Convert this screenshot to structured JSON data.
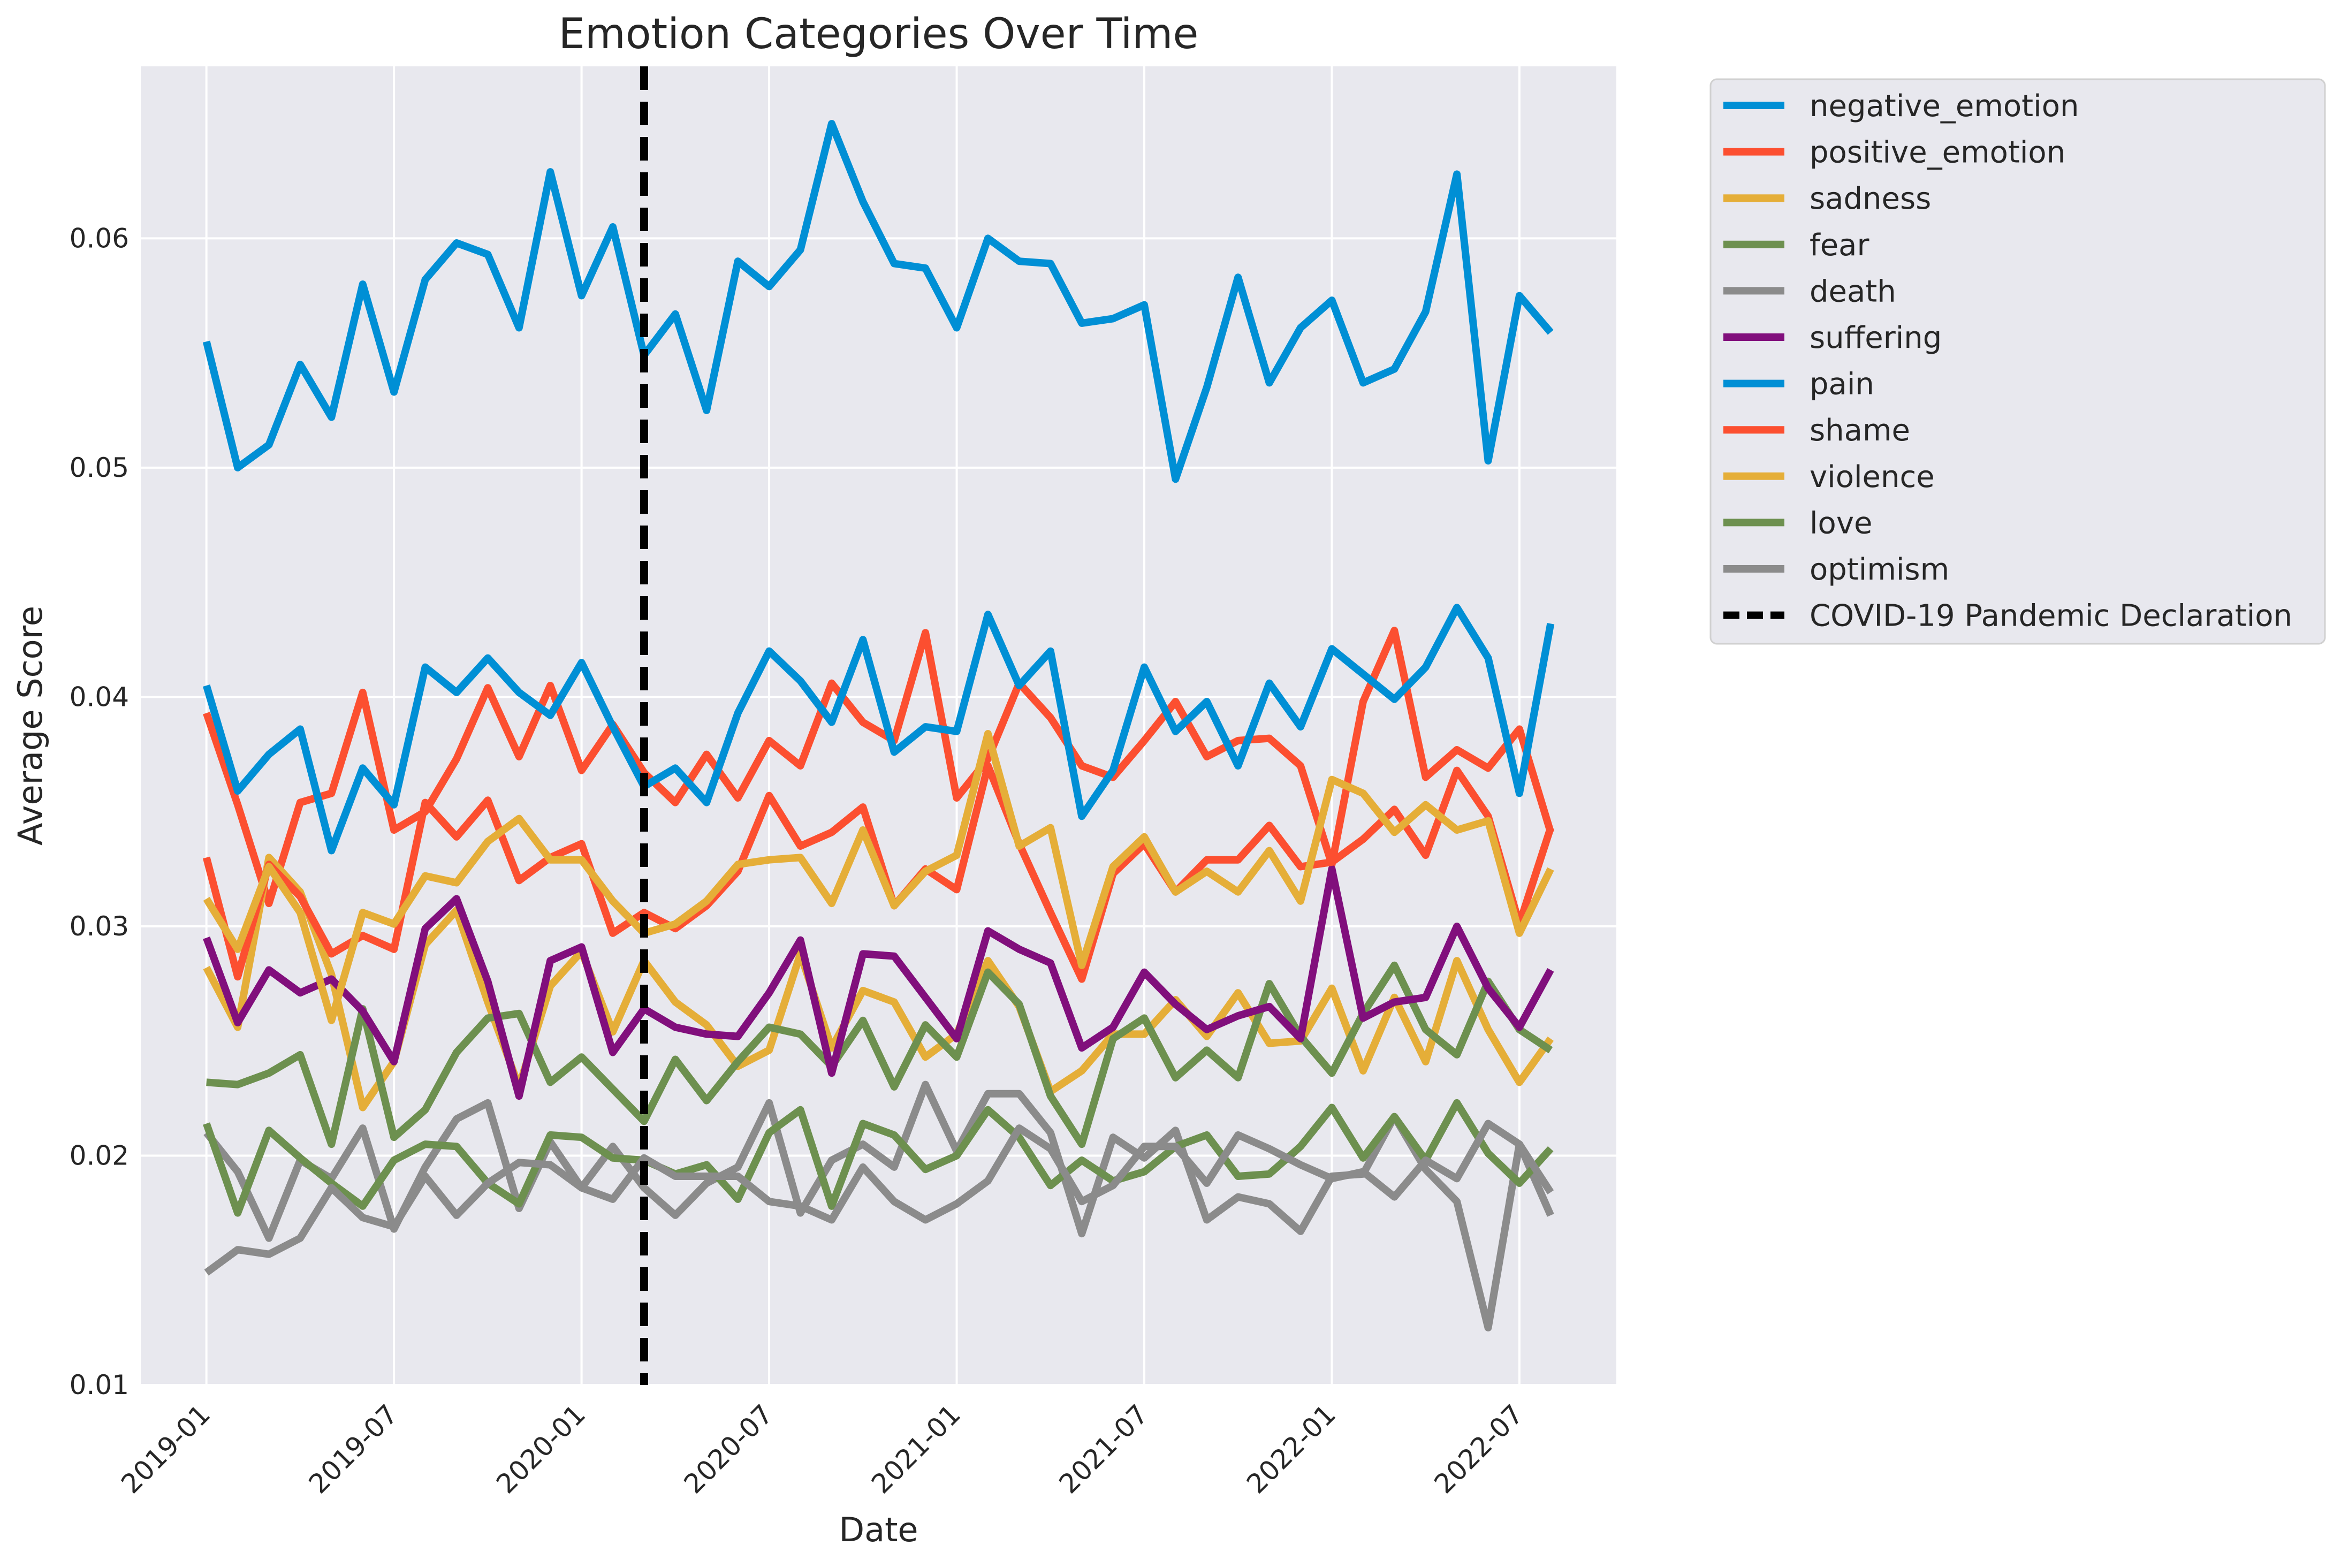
{
  "chart_data": {
    "type": "line",
    "title": "Emotion Categories Over Time",
    "xlabel": "Date",
    "ylabel": "Average Score",
    "x": [
      "2019-01",
      "2019-02",
      "2019-03",
      "2019-04",
      "2019-05",
      "2019-06",
      "2019-07",
      "2019-08",
      "2019-09",
      "2019-10",
      "2019-11",
      "2019-12",
      "2020-01",
      "2020-02",
      "2020-03",
      "2020-04",
      "2020-05",
      "2020-06",
      "2020-07",
      "2020-08",
      "2020-09",
      "2020-10",
      "2020-11",
      "2020-12",
      "2021-01",
      "2021-02",
      "2021-03",
      "2021-04",
      "2021-05",
      "2021-06",
      "2021-07",
      "2021-08",
      "2021-09",
      "2021-10",
      "2021-11",
      "2021-12",
      "2022-01",
      "2022-02",
      "2022-03",
      "2022-04",
      "2022-05",
      "2022-06",
      "2022-07",
      "2022-08"
    ],
    "x_ticks": [
      "2019-01",
      "2019-07",
      "2020-01",
      "2020-07",
      "2021-01",
      "2021-07",
      "2022-01",
      "2022-07"
    ],
    "ylim": [
      0.01,
      0.0675
    ],
    "y_ticks": [
      0.01,
      0.02,
      0.03,
      0.04,
      0.05,
      0.06
    ],
    "y_tick_labels": [
      "0.01",
      "0.02",
      "0.03",
      "0.04",
      "0.05",
      "0.06"
    ],
    "grid": true,
    "legend_position": "outside-top-right",
    "series": [
      {
        "name": "negative_emotion",
        "color": "#008fd5",
        "values": [
          0.0555,
          0.05,
          0.051,
          0.0545,
          0.0522,
          0.058,
          0.0533,
          0.0582,
          0.0598,
          0.0593,
          0.0561,
          0.0629,
          0.0575,
          0.0605,
          0.0549,
          0.0567,
          0.0525,
          0.059,
          0.0579,
          0.0595,
          0.065,
          0.0616,
          0.0589,
          0.0587,
          0.0561,
          0.06,
          0.059,
          0.0589,
          0.0563,
          0.0565,
          0.0571,
          0.0495,
          0.0535,
          0.0583,
          0.0537,
          0.0561,
          0.0573,
          0.0537,
          0.0543,
          0.0568,
          0.0628,
          0.0503,
          0.0575,
          0.0559
        ]
      },
      {
        "name": "positive_emotion",
        "color": "#fc4f30",
        "values": [
          0.0393,
          0.0353,
          0.031,
          0.0354,
          0.0358,
          0.0402,
          0.0342,
          0.035,
          0.0373,
          0.0404,
          0.0374,
          0.0405,
          0.0368,
          0.0388,
          0.0367,
          0.0354,
          0.0375,
          0.0356,
          0.0381,
          0.037,
          0.0406,
          0.0389,
          0.0381,
          0.0428,
          0.0356,
          0.0373,
          0.0406,
          0.0391,
          0.037,
          0.0365,
          0.0381,
          0.0398,
          0.0374,
          0.0381,
          0.0382,
          0.037,
          0.0327,
          0.0398,
          0.0429,
          0.0365,
          0.0377,
          0.0369,
          0.0386,
          0.0341
        ]
      },
      {
        "name": "sadness",
        "color": "#e5ae38",
        "values": [
          0.0282,
          0.0256,
          0.033,
          0.0315,
          0.0279,
          0.0221,
          0.0241,
          0.0292,
          0.0307,
          0.0267,
          0.023,
          0.0274,
          0.0289,
          0.0254,
          0.0285,
          0.0267,
          0.0257,
          0.0239,
          0.0246,
          0.0288,
          0.0247,
          0.0272,
          0.0267,
          0.0243,
          0.0253,
          0.0285,
          0.0265,
          0.0228,
          0.0237,
          0.0253,
          0.0253,
          0.0268,
          0.0252,
          0.0271,
          0.0249,
          0.025,
          0.0273,
          0.0237,
          0.0269,
          0.0241,
          0.0285,
          0.0255,
          0.0232,
          0.0251
        ]
      },
      {
        "name": "fear",
        "color": "#6d904f",
        "values": [
          0.0232,
          0.0231,
          0.0236,
          0.0244,
          0.0205,
          0.0264,
          0.0208,
          0.022,
          0.0245,
          0.026,
          0.0262,
          0.0232,
          0.0243,
          0.0229,
          0.0215,
          0.0242,
          0.0224,
          0.0241,
          0.0256,
          0.0253,
          0.0239,
          0.0259,
          0.023,
          0.0257,
          0.0243,
          0.028,
          0.0266,
          0.0226,
          0.0205,
          0.0251,
          0.026,
          0.0234,
          0.0246,
          0.0234,
          0.0275,
          0.0252,
          0.0236,
          0.0262,
          0.0283,
          0.0255,
          0.0244,
          0.0276,
          0.0255,
          0.0246
        ]
      },
      {
        "name": "death",
        "color": "#8b8b8b",
        "values": [
          0.021,
          0.0193,
          0.0164,
          0.0198,
          0.019,
          0.0212,
          0.0168,
          0.0195,
          0.0216,
          0.0223,
          0.0177,
          0.0206,
          0.0186,
          0.0204,
          0.0186,
          0.0174,
          0.0188,
          0.0195,
          0.0223,
          0.0175,
          0.0198,
          0.0205,
          0.0195,
          0.0231,
          0.0202,
          0.0227,
          0.0227,
          0.021,
          0.0166,
          0.0208,
          0.0199,
          0.0211,
          0.0172,
          0.0182,
          0.0179,
          0.0167,
          0.0191,
          0.0192,
          0.0217,
          0.0194,
          0.018,
          0.0125,
          0.0205,
          0.0174
        ]
      },
      {
        "name": "suffering",
        "color": "#810f7c",
        "values": [
          0.0295,
          0.0258,
          0.0281,
          0.0271,
          0.0277,
          0.0263,
          0.0241,
          0.0299,
          0.0312,
          0.0276,
          0.0226,
          0.0285,
          0.0291,
          0.0245,
          0.0264,
          0.0256,
          0.0253,
          0.0252,
          0.0271,
          0.0294,
          0.0236,
          0.0288,
          0.0287,
          0.0269,
          0.0251,
          0.0298,
          0.029,
          0.0284,
          0.0247,
          0.0256,
          0.028,
          0.0266,
          0.0255,
          0.0261,
          0.0265,
          0.0251,
          0.0325,
          0.026,
          0.0267,
          0.0269,
          0.03,
          0.0273,
          0.0256,
          0.0281
        ]
      },
      {
        "name": "pain",
        "color": "#008fd5",
        "values": [
          0.0405,
          0.0359,
          0.0375,
          0.0386,
          0.0333,
          0.0369,
          0.0353,
          0.0413,
          0.0402,
          0.0417,
          0.0402,
          0.0392,
          0.0415,
          0.0387,
          0.0361,
          0.0369,
          0.0354,
          0.0393,
          0.042,
          0.0407,
          0.0389,
          0.0425,
          0.0376,
          0.0387,
          0.0385,
          0.0436,
          0.0405,
          0.042,
          0.0348,
          0.0368,
          0.0413,
          0.0385,
          0.0398,
          0.037,
          0.0406,
          0.0387,
          0.0421,
          0.041,
          0.0399,
          0.0413,
          0.0439,
          0.0417,
          0.0358,
          0.0432
        ]
      },
      {
        "name": "shame",
        "color": "#fc4f30",
        "values": [
          0.033,
          0.0278,
          0.0327,
          0.0313,
          0.0288,
          0.0296,
          0.029,
          0.0354,
          0.0339,
          0.0355,
          0.032,
          0.033,
          0.0336,
          0.0297,
          0.0306,
          0.0299,
          0.0309,
          0.0324,
          0.0357,
          0.0335,
          0.0341,
          0.0352,
          0.0309,
          0.0325,
          0.0316,
          0.037,
          0.0336,
          0.0306,
          0.0277,
          0.0323,
          0.0336,
          0.0315,
          0.0329,
          0.0329,
          0.0344,
          0.0326,
          0.0328,
          0.0338,
          0.0351,
          0.0331,
          0.0368,
          0.0348,
          0.0301,
          0.0343
        ]
      },
      {
        "name": "violence",
        "color": "#e5ae38",
        "values": [
          0.0312,
          0.029,
          0.0326,
          0.0306,
          0.0259,
          0.0306,
          0.0301,
          0.0322,
          0.0319,
          0.0337,
          0.0347,
          0.0329,
          0.0329,
          0.0311,
          0.0297,
          0.0301,
          0.0311,
          0.0327,
          0.0329,
          0.033,
          0.031,
          0.0342,
          0.0309,
          0.0324,
          0.0331,
          0.0384,
          0.0335,
          0.0343,
          0.0283,
          0.0326,
          0.0339,
          0.0315,
          0.0324,
          0.0315,
          0.0333,
          0.0311,
          0.0364,
          0.0358,
          0.0341,
          0.0353,
          0.0342,
          0.0346,
          0.0297,
          0.0325
        ]
      },
      {
        "name": "love",
        "color": "#6d904f",
        "values": [
          0.0214,
          0.0175,
          0.0211,
          0.0199,
          0.0188,
          0.0178,
          0.0198,
          0.0205,
          0.0204,
          0.0188,
          0.0179,
          0.0209,
          0.0208,
          0.0199,
          0.0198,
          0.0192,
          0.0196,
          0.0181,
          0.021,
          0.022,
          0.0178,
          0.0214,
          0.0209,
          0.0194,
          0.02,
          0.022,
          0.0208,
          0.0187,
          0.0198,
          0.0189,
          0.0193,
          0.0204,
          0.0209,
          0.0191,
          0.0192,
          0.0204,
          0.0221,
          0.0199,
          0.0217,
          0.0198,
          0.0223,
          0.0201,
          0.0188,
          0.0203
        ]
      },
      {
        "name": "optimism",
        "color": "#8b8b8b",
        "values": [
          0.0149,
          0.0159,
          0.0157,
          0.0164,
          0.0186,
          0.0173,
          0.0169,
          0.0191,
          0.0174,
          0.0188,
          0.0197,
          0.0196,
          0.0186,
          0.0181,
          0.0199,
          0.0191,
          0.0191,
          0.0191,
          0.018,
          0.0178,
          0.0172,
          0.0195,
          0.018,
          0.0172,
          0.0179,
          0.0189,
          0.0212,
          0.0203,
          0.018,
          0.0187,
          0.0204,
          0.0204,
          0.0188,
          0.0209,
          0.0203,
          0.0196,
          0.019,
          0.0193,
          0.0182,
          0.0198,
          0.019,
          0.0214,
          0.0205,
          0.0184
        ]
      }
    ],
    "annotations": [
      {
        "type": "vline",
        "x": "2020-03",
        "label": "COVID-19 Pandemic Declaration",
        "color": "#000000",
        "style": "dashed"
      }
    ]
  }
}
